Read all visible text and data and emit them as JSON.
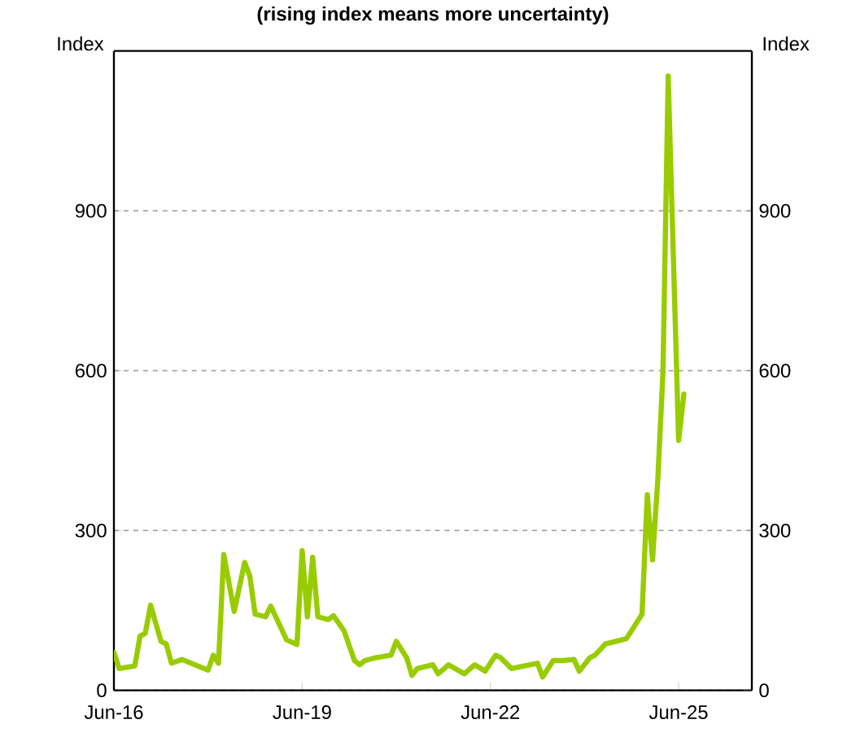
{
  "chart_data": {
    "type": "line",
    "title": "(rising index means more uncertainty)",
    "ylabel": "Index",
    "y2label": "Index",
    "x": [
      "2016-06",
      "2016-07",
      "2016-10",
      "2016-11",
      "2016-12",
      "2017-01",
      "2017-03",
      "2017-04",
      "2017-05",
      "2017-07",
      "2017-12",
      "2018-01",
      "2018-02",
      "2018-03",
      "2018-05",
      "2018-07",
      "2018-08",
      "2018-09",
      "2018-11",
      "2018-12",
      "2019-03",
      "2019-05",
      "2019-06",
      "2019-07",
      "2019-08",
      "2019-09",
      "2019-11",
      "2019-12",
      "2020-02",
      "2020-04",
      "2020-05",
      "2020-06",
      "2020-08",
      "2020-11",
      "2020-12",
      "2021-02",
      "2021-03",
      "2021-04",
      "2021-07",
      "2021-08",
      "2021-10",
      "2022-01",
      "2022-03",
      "2022-05",
      "2022-07",
      "2022-08",
      "2022-10",
      "2023-03",
      "2023-04",
      "2023-06",
      "2023-08",
      "2023-10",
      "2023-11",
      "2024-01",
      "2024-02",
      "2024-04",
      "2024-06",
      "2024-08",
      "2024-09",
      "2024-11",
      "2024-12",
      "2025-01",
      "2025-02",
      "2025-03",
      "2025-04",
      "2025-06",
      "2025-07"
    ],
    "series": [
      {
        "color": "#99cc00",
        "values": [
          71,
          41,
          46,
          102,
          107,
          160,
          92,
          87,
          51,
          58,
          38,
          66,
          51,
          255,
          148,
          240,
          214,
          143,
          138,
          158,
          95,
          86,
          262,
          138,
          250,
          138,
          133,
          140,
          112,
          56,
          48,
          56,
          61,
          66,
          92,
          61,
          28,
          41,
          48,
          31,
          48,
          31,
          48,
          36,
          66,
          61,
          41,
          51,
          25,
          56,
          56,
          58,
          36,
          61,
          66,
          87,
          92,
          97,
          112,
          143,
          367,
          245,
          393,
          597,
          1153,
          469,
          556
        ]
      }
    ],
    "xlim": [
      "2016-06",
      "2026-08"
    ],
    "xticks": [
      {
        "value": "2016-06",
        "label": "Jun-16"
      },
      {
        "value": "2019-06",
        "label": "Jun-19"
      },
      {
        "value": "2022-06",
        "label": "Jun-22"
      },
      {
        "value": "2025-06",
        "label": "Jun-25"
      }
    ],
    "ylim": [
      0,
      1200
    ],
    "yticks": [
      0,
      300,
      600,
      900
    ],
    "y2lim": [
      0,
      1200
    ],
    "y2ticks": [
      0,
      300,
      600,
      900
    ],
    "grid": "y",
    "marker": "none",
    "line_style": "solid"
  }
}
